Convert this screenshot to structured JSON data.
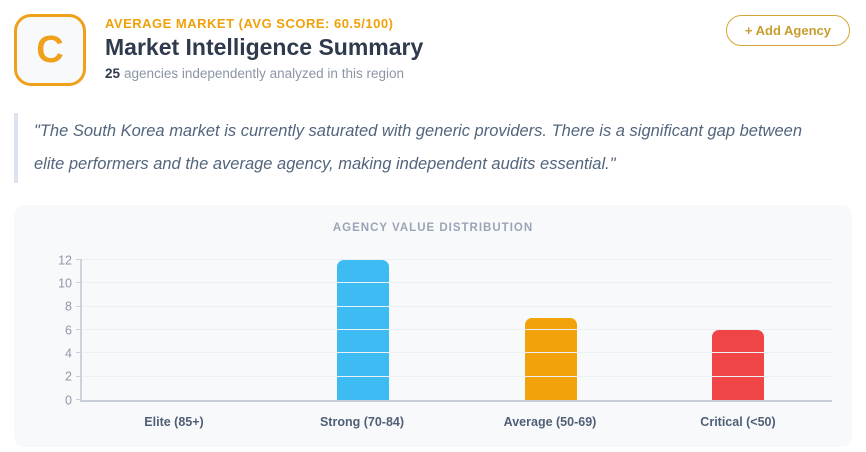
{
  "header": {
    "grade": "C",
    "eyebrow": "AVERAGE MARKET (AVG SCORE: 60.5/100)",
    "title": "Market Intelligence Summary",
    "agency_count": "25",
    "subtitle_rest": "agencies independently analyzed in this region",
    "add_agency_label": "+ Add Agency"
  },
  "quote": {
    "text": "\"The South Korea market is currently saturated with generic providers. There is a significant gap between elite performers and the average agency, making independent audits essential.\""
  },
  "chart_data": {
    "type": "bar",
    "title": "AGENCY VALUE DISTRIBUTION",
    "categories": [
      "Elite (85+)",
      "Strong (70-84)",
      "Average (50-69)",
      "Critical (<50)"
    ],
    "values": [
      0,
      12,
      7,
      6
    ],
    "bar_colors": [
      "",
      "#3cbcf2",
      "#f2a30b",
      "#ef4546"
    ],
    "ylim": [
      0,
      12
    ],
    "yticks": [
      0,
      2,
      4,
      6,
      8,
      10,
      12
    ],
    "grid": true,
    "legend": "none",
    "xlabel": "",
    "ylabel": ""
  },
  "colors": {
    "accent_orange": "#f0a00a",
    "badge_orange": "#efa11c",
    "button_gold": "#c79d2e",
    "card_background": "#f8f9fb",
    "bar_blue": "#3cbcf2",
    "bar_orange": "#f2a30b",
    "bar_red": "#ef4546"
  }
}
